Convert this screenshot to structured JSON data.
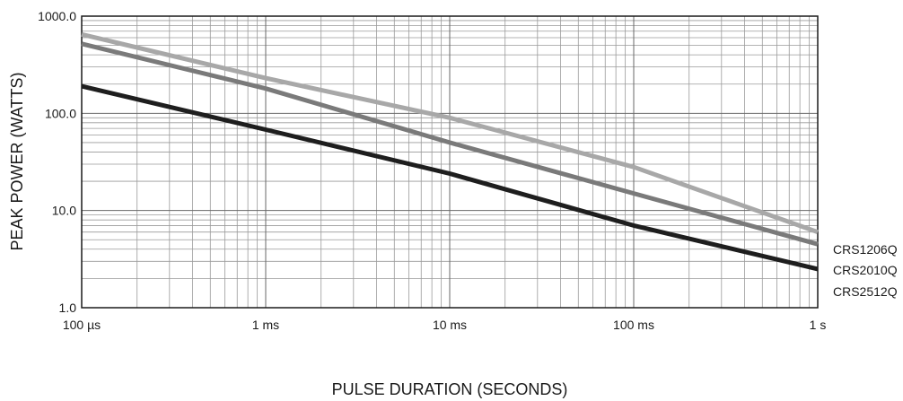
{
  "chart_data": {
    "type": "line",
    "title": "",
    "xlabel": "PULSE DURATION (SECONDS)",
    "ylabel": "PEAK POWER (WATTS)",
    "x_scale": "log",
    "y_scale": "log",
    "xlim": [
      0.0001,
      1
    ],
    "ylim": [
      1,
      1000
    ],
    "grid": true,
    "x_ticks": [
      {
        "value": 0.0001,
        "label": "100 µs"
      },
      {
        "value": 0.001,
        "label": "1 ms"
      },
      {
        "value": 0.01,
        "label": "10 ms"
      },
      {
        "value": 0.1,
        "label": "100 ms"
      },
      {
        "value": 1,
        "label": "1 s"
      }
    ],
    "y_ticks": [
      {
        "value": 1,
        "label": "1.0"
      },
      {
        "value": 10,
        "label": "10.0"
      },
      {
        "value": 100,
        "label": "100.0"
      },
      {
        "value": 1000,
        "label": "1000.0"
      }
    ],
    "legend": "right, at line ends",
    "series": [
      {
        "name": "CRS1206Q",
        "color": "#a8a8a8",
        "points": [
          [
            0.0001,
            650
          ],
          [
            0.001,
            230
          ],
          [
            0.01,
            90
          ],
          [
            0.1,
            28
          ],
          [
            1,
            6
          ]
        ]
      },
      {
        "name": "CRS2010Q",
        "color": "#7a7a7a",
        "points": [
          [
            0.0001,
            520
          ],
          [
            0.001,
            180
          ],
          [
            0.01,
            50
          ],
          [
            0.1,
            15
          ],
          [
            1,
            4.5
          ]
        ]
      },
      {
        "name": "CRS2512Q",
        "color": "#1e1e1e",
        "points": [
          [
            0.0001,
            190
          ],
          [
            0.001,
            68
          ],
          [
            0.01,
            24
          ],
          [
            0.1,
            7
          ],
          [
            1,
            2.5
          ]
        ]
      }
    ]
  }
}
